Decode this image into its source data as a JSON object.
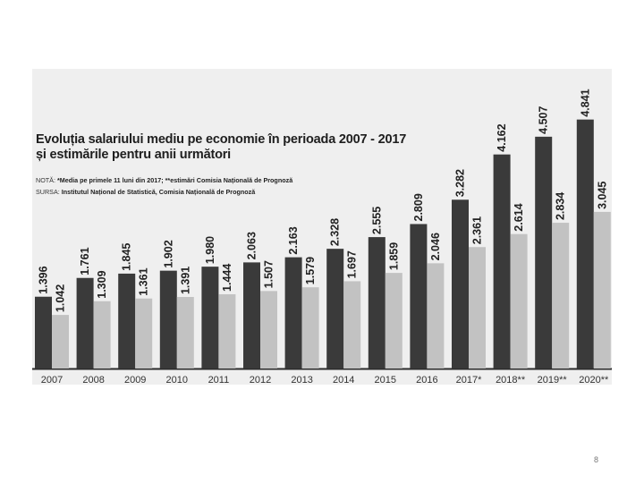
{
  "chart_data": {
    "type": "bar",
    "title": "Evoluția salariului mediu pe economie în perioada 2007 - 2017",
    "subtitle": "și estimările pentru anii următori",
    "note_label": "NOTĂ:",
    "note": "*Media pe primele 11 luni din 2017; **estimări Comisia Națională de Prognoză",
    "source_label": "SURSA:",
    "source": "Institutul Național de Statistică, Comisia Națională de Prognoză",
    "categories": [
      "2007",
      "2008",
      "2009",
      "2010",
      "2011",
      "2012",
      "2013",
      "2014",
      "2015",
      "2016",
      "2017*",
      "2018**",
      "2019**",
      "2020**"
    ],
    "series": [
      {
        "color": "#3a3a3a",
        "values": [
          1396,
          1761,
          1845,
          1902,
          1980,
          2063,
          2163,
          2328,
          2555,
          2809,
          3282,
          4162,
          4507,
          4841
        ],
        "labels": [
          "1.396",
          "1.761",
          "1.845",
          "1.902",
          "1.980",
          "2.063",
          "2.163",
          "2.328",
          "2.555",
          "2.809",
          "3.282",
          "4.162",
          "4.507",
          "4.841"
        ]
      },
      {
        "color": "#c2c2c2",
        "values": [
          1042,
          1309,
          1361,
          1391,
          1444,
          1507,
          1579,
          1697,
          1859,
          2046,
          2361,
          2614,
          2834,
          3045
        ],
        "labels": [
          "1.042",
          "1.309",
          "1.361",
          "1.391",
          "1.444",
          "1.507",
          "1.579",
          "1.697",
          "1.859",
          "2.046",
          "2.361",
          "2.614",
          "2.834",
          "3.045"
        ]
      }
    ],
    "ylim": [
      0,
      5000
    ],
    "grid": false,
    "legend": "none",
    "panel_color": "#efefef"
  },
  "page_number": "8"
}
